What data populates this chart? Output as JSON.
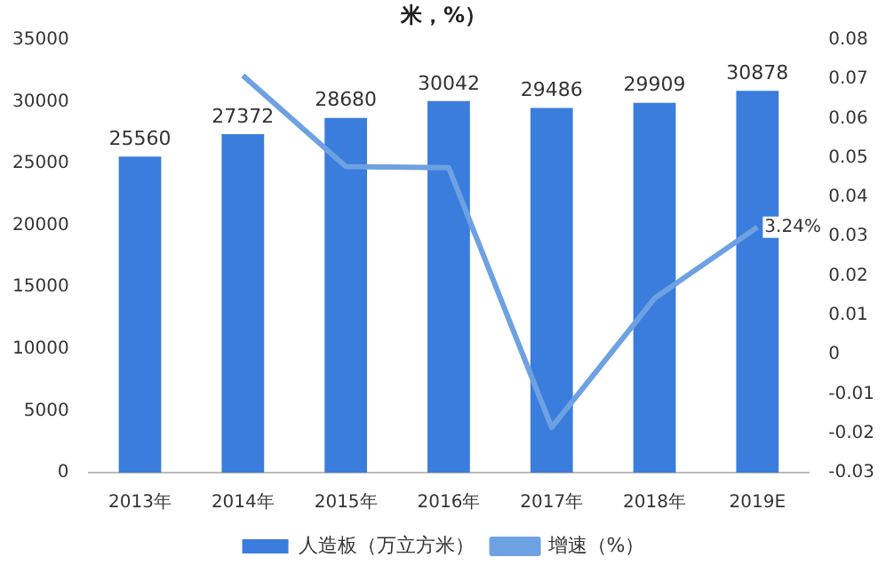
{
  "chart_data": {
    "type": "bar",
    "title": "米，%）",
    "categories": [
      "2013年",
      "2014年",
      "2015年",
      "2016年",
      "2017年",
      "2018年",
      "2019E"
    ],
    "series": [
      {
        "name": "人造板（万立方米）",
        "color": "#3b7ddd",
        "values": [
          25560,
          27372,
          28680,
          30042,
          29486,
          29909,
          30878
        ],
        "value_labels": [
          "25560",
          "27372",
          "28680",
          "30042",
          "29486",
          "29909",
          "30878"
        ]
      },
      {
        "name": "增速（%）",
        "type": "line",
        "axis": "y2",
        "color": "#6ea1e2",
        "values": [
          null,
          0.0709,
          0.0478,
          0.0475,
          -0.0185,
          0.0143,
          0.0324
        ],
        "value_labels": [
          null,
          null,
          null,
          null,
          null,
          null,
          "3.24%"
        ]
      }
    ],
    "ylim": [
      0,
      35000
    ],
    "yticks": [
      0,
      5000,
      10000,
      15000,
      20000,
      25000,
      30000,
      35000
    ],
    "y2lim": [
      -0.03,
      0.08
    ],
    "y2ticks": [
      -0.03,
      -0.02,
      -0.01,
      0,
      0.01,
      0.02,
      0.03,
      0.04,
      0.05,
      0.06,
      0.07,
      0.08
    ],
    "grid": false,
    "legend": "bottom",
    "marker": "none"
  }
}
